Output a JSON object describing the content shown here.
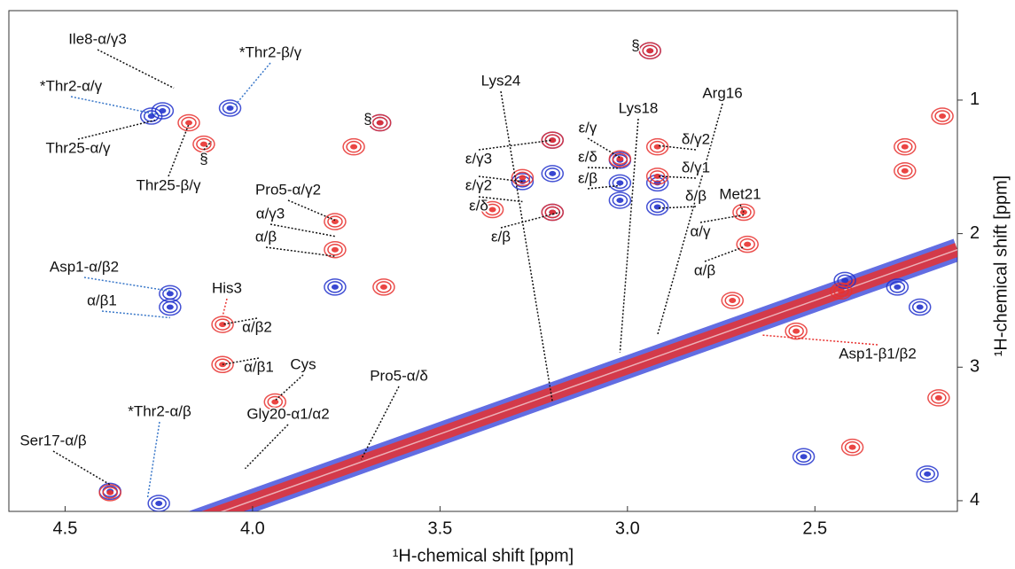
{
  "chart_data": {
    "type": "contour",
    "x_label": "¹H-chemical shift [ppm]",
    "y_label": "¹H-chemical shift [ppm]",
    "xlim": [
      4.65,
      2.12
    ],
    "ylim": [
      4.08,
      0.33
    ],
    "xticks": [
      4.5,
      {
        "value": 4,
        "label": "4.0"
      },
      3.5,
      {
        "value": 3,
        "label": "3.0"
      },
      2.5
    ],
    "yticks": [
      1,
      2,
      3,
      4
    ],
    "diagonal_colors": [
      "#1f2fd6",
      "#e8312f"
    ],
    "series": [
      {
        "color": "#2233cc",
        "x": [
          4.22,
          4.22,
          4.24,
          4.27,
          4.06,
          3.2,
          3.2,
          3.2,
          3.28,
          3.02,
          3.02,
          3.02,
          2.92,
          2.92,
          4.38,
          4.25,
          3.78,
          2.28,
          2.22,
          2.42,
          2.53,
          2.2,
          3.66,
          2.94
        ],
        "y": [
          2.45,
          2.55,
          1.08,
          1.12,
          1.06,
          1.3,
          1.55,
          1.84,
          1.61,
          1.45,
          1.62,
          1.75,
          1.62,
          1.8,
          3.93,
          4.02,
          2.4,
          2.4,
          2.55,
          2.35,
          3.67,
          3.8,
          1.17,
          0.63
        ]
      },
      {
        "color": "#e8312f",
        "x": [
          4.17,
          4.13,
          4.08,
          4.08,
          3.94,
          4.38,
          3.2,
          3.2,
          3.28,
          3.02,
          2.92,
          2.92,
          2.69,
          2.68,
          2.72,
          2.26,
          2.26,
          2.16,
          3.66,
          2.94,
          3.73,
          3.78,
          3.78,
          3.65,
          2.43,
          2.55,
          2.17,
          2.4,
          3.36
        ],
        "y": [
          1.17,
          1.33,
          2.68,
          2.98,
          3.26,
          3.94,
          1.3,
          1.84,
          1.58,
          1.44,
          1.35,
          1.57,
          1.84,
          2.08,
          2.5,
          1.35,
          1.53,
          1.12,
          1.17,
          0.63,
          1.35,
          1.91,
          2.12,
          2.4,
          2.43,
          2.73,
          3.23,
          3.6,
          1.82
        ]
      }
    ],
    "annotations": [
      {
        "text": "Ile8-α/γ3",
        "x": 4.21,
        "y": 0.91,
        "color": "#111"
      },
      {
        "text": "*Thr2-α/γ",
        "x": 4.25,
        "y": 1.11,
        "color": "#3a78c9"
      },
      {
        "text": "*Thr2-β/γ",
        "x": 4.05,
        "y": 1.05,
        "color": "#3a78c9"
      },
      {
        "text": "Thr25-α/γ",
        "x": 4.26,
        "y": 1.15,
        "color": "#111"
      },
      {
        "text": "Thr25-β/γ",
        "x": 4.17,
        "y": 1.18,
        "color": "#111"
      },
      {
        "text": "§",
        "x": 4.11,
        "y": 1.31,
        "color": "#111"
      },
      {
        "text": "§",
        "x": 3.66,
        "y": 1.17,
        "color": "#111"
      },
      {
        "text": "§",
        "x": 2.94,
        "y": 0.64,
        "color": "#111"
      },
      {
        "text": "Pro5-α/γ2",
        "x": 3.78,
        "y": 1.9,
        "color": "#111"
      },
      {
        "text": "α/γ3",
        "x": 3.78,
        "y": 2.02,
        "color": "#111"
      },
      {
        "text": "α/β",
        "x": 3.78,
        "y": 2.17,
        "color": "#111"
      },
      {
        "text": "Asp1-α/β2",
        "x": 4.22,
        "y": 2.43,
        "color": "#3a78c9"
      },
      {
        "text": "α/β1",
        "x": 4.22,
        "y": 2.63,
        "color": "#3a78c9"
      },
      {
        "text": "His3",
        "x": 4.08,
        "y": 2.62,
        "color": "#e8312f"
      },
      {
        "text": "α/β2",
        "x": 4.08,
        "y": 2.68,
        "color": "#111"
      },
      {
        "text": "α/β1",
        "x": 4.08,
        "y": 2.98,
        "color": "#111"
      },
      {
        "text": "Cys",
        "x": 3.94,
        "y": 3.25,
        "color": "#111"
      },
      {
        "text": "Pro5-α/δ",
        "x": 3.71,
        "y": 3.69,
        "color": "#111"
      },
      {
        "text": "Gly20-α1/α2",
        "x": 4.02,
        "y": 3.76,
        "color": "#111"
      },
      {
        "text": "*Thr2-α/β",
        "x": 4.28,
        "y": 3.98,
        "color": "#3a78c9"
      },
      {
        "text": "Ser17-α/β",
        "x": 4.38,
        "y": 3.88,
        "color": "#111"
      },
      {
        "text": "Lys24",
        "x": 3.2,
        "y": 3.26,
        "color": "#111"
      },
      {
        "text": "Lys18",
        "x": 3.02,
        "y": 2.89,
        "color": "#111"
      },
      {
        "text": "Arg16",
        "x": 2.92,
        "y": 2.76,
        "color": "#111"
      },
      {
        "text": "ε/γ3",
        "x": 3.2,
        "y": 1.3,
        "color": "#111"
      },
      {
        "text": "ε/γ2",
        "x": 3.28,
        "y": 1.61,
        "color": "#111"
      },
      {
        "text": "ε/δ",
        "x": 3.28,
        "y": 1.76,
        "color": "#111"
      },
      {
        "text": "ε/β",
        "x": 3.18,
        "y": 1.84,
        "color": "#111"
      },
      {
        "text": "ε/γ",
        "x": 3.02,
        "y": 1.43,
        "color": "#111"
      },
      {
        "text": "ε/δ",
        "x": 3.02,
        "y": 1.51,
        "color": "#111"
      },
      {
        "text": "ε/β",
        "x": 3.02,
        "y": 1.64,
        "color": "#111"
      },
      {
        "text": "δ/γ2",
        "x": 2.92,
        "y": 1.34,
        "color": "#111"
      },
      {
        "text": "δ/γ1",
        "x": 2.92,
        "y": 1.57,
        "color": "#111"
      },
      {
        "text": "δ/β",
        "x": 2.92,
        "y": 1.81,
        "color": "#111"
      },
      {
        "text": "Met21",
        "x": 2.69,
        "y": 1.84,
        "color": "#111"
      },
      {
        "text": "α/γ",
        "x": 2.69,
        "y": 1.86,
        "color": "#111"
      },
      {
        "text": "α/β",
        "x": 2.69,
        "y": 2.1,
        "color": "#111"
      },
      {
        "text": "Asp1-β1/β2",
        "x": 2.64,
        "y": 2.76,
        "color": "#e8312f"
      }
    ]
  }
}
